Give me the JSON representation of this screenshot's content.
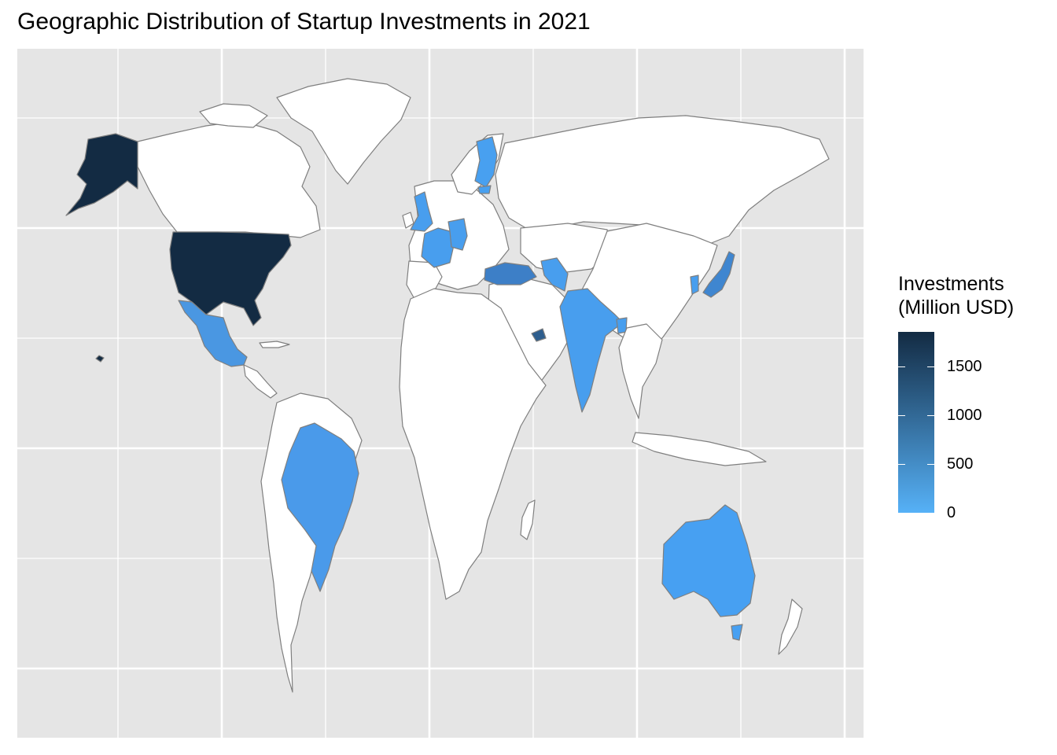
{
  "title": "Geographic Distribution of Startup Investments in 2021",
  "legend": {
    "title_line1": "Investments",
    "title_line2": "(Million USD)",
    "low_color": "#56B1F7",
    "high_color": "#132B43",
    "max_value": 1850,
    "ticks": [
      {
        "value": 1500,
        "label": "1500"
      },
      {
        "value": 1000,
        "label": "1000"
      },
      {
        "value": 500,
        "label": "500"
      },
      {
        "value": 0,
        "label": "0"
      }
    ]
  },
  "colors": {
    "panel": "#e5e5e5",
    "no_data_fill": "#ffffff",
    "border": "#7f7f7f",
    "grid": "#ffffff"
  },
  "chart_data": {
    "type": "choropleth",
    "title": "Geographic Distribution of Startup Investments in 2021",
    "value_label": "Investments (Million USD)",
    "scale": {
      "min": 0,
      "max": 1850,
      "low_color": "#56B1F7",
      "high_color": "#132B43"
    },
    "regions": [
      {
        "name": "United States",
        "value": 1850
      },
      {
        "name": "Mexico",
        "value": 80
      },
      {
        "name": "Brazil",
        "value": 100
      },
      {
        "name": "United Kingdom",
        "value": 150
      },
      {
        "name": "France",
        "value": 150
      },
      {
        "name": "Germany",
        "value": 180
      },
      {
        "name": "Finland",
        "value": 120
      },
      {
        "name": "Estonia",
        "value": 120
      },
      {
        "name": "Turkey",
        "value": 380
      },
      {
        "name": "Pakistan",
        "value": 150
      },
      {
        "name": "India",
        "value": 150
      },
      {
        "name": "Bangladesh",
        "value": 150
      },
      {
        "name": "United Arab Emirates",
        "value": 800
      },
      {
        "name": "South Korea",
        "value": 100
      },
      {
        "name": "Japan",
        "value": 350
      },
      {
        "name": "Australia",
        "value": 90
      }
    ]
  }
}
